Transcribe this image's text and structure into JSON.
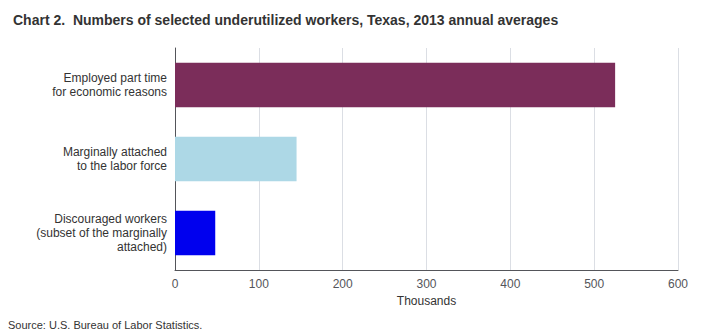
{
  "chart_data": {
    "type": "bar",
    "orientation": "horizontal",
    "title": "Chart 2.  Numbers of selected underutilized workers, Texas, 2013 annual averages",
    "categories": [
      "Discouraged workers\n(subset of the marginally\nattached)",
      "Marginally attached\nto the labor force",
      "Employed part time\nfor economic reasons"
    ],
    "values": [
      48,
      145,
      525
    ],
    "colors": [
      "#0000EE",
      "#ADD8E6",
      "#7B2D5A"
    ],
    "xlabel": "Thousands",
    "xlim": [
      0,
      600
    ],
    "xticks": [
      0,
      100,
      200,
      300,
      400,
      500,
      600
    ],
    "grid": true,
    "annotations": [
      "Source: U.S. Bureau of Labor Statistics."
    ]
  }
}
